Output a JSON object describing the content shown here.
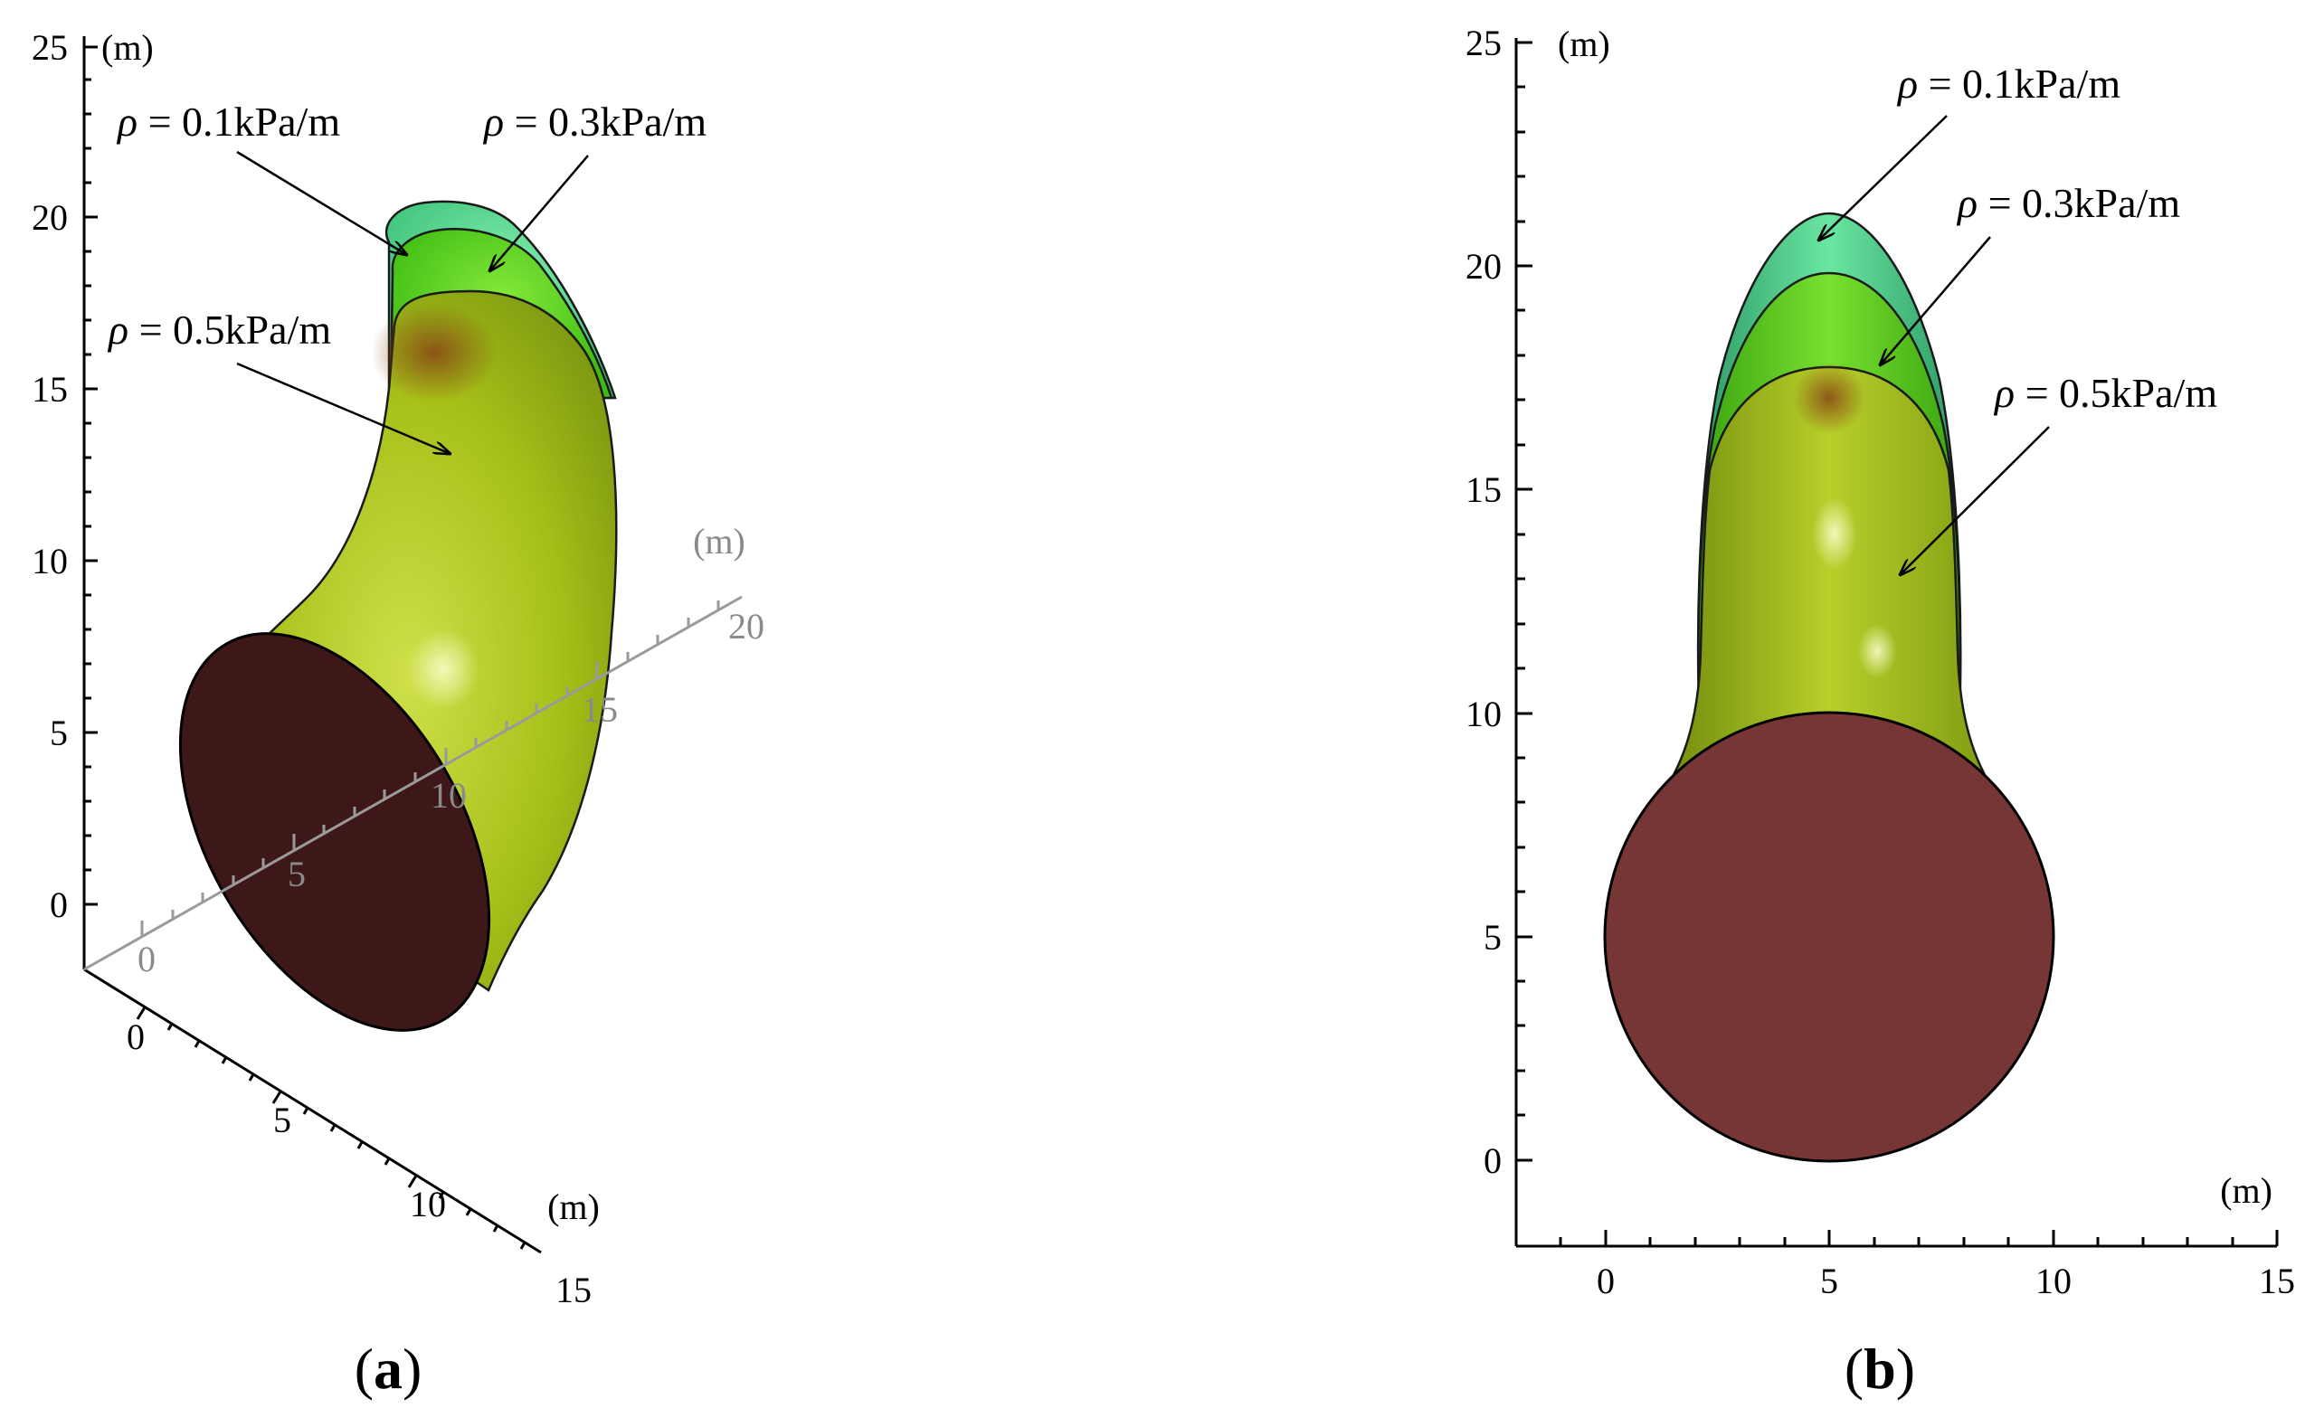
{
  "colors": {
    "outer_layer": "#56d98e",
    "middle_layer": "#5fcc1a",
    "inner_layer": "#a9c21a",
    "cross_section_a": "#3e1818",
    "cross_section_b": "#773636",
    "gray_axis": "#9a9a9a"
  },
  "panel_a": {
    "label_open": "(",
    "label_letter": "a",
    "label_close": ")",
    "vertical_axis": {
      "unit": "(m)",
      "ticks": [
        "0",
        "5",
        "10",
        "15",
        "20",
        "25"
      ]
    },
    "front_axis": {
      "unit": "(m)",
      "ticks": [
        "0",
        "5",
        "10",
        "15"
      ]
    },
    "depth_axis": {
      "unit": "(m)",
      "ticks": [
        "0",
        "5",
        "10",
        "15",
        "20"
      ]
    },
    "annotations": [
      {
        "symbol": "ρ",
        "text": " = 0.1kPa/m"
      },
      {
        "symbol": "ρ",
        "text": " = 0.3kPa/m"
      },
      {
        "symbol": "ρ",
        "text": " = 0.5kPa/m"
      }
    ]
  },
  "panel_b": {
    "label_open": "(",
    "label_letter": "b",
    "label_close": ")",
    "y_axis": {
      "unit": "(m)",
      "ticks": [
        "0",
        "5",
        "10",
        "15",
        "20",
        "25"
      ]
    },
    "x_axis": {
      "unit": "(m)",
      "ticks": [
        "0",
        "5",
        "10",
        "15"
      ]
    },
    "annotations": [
      {
        "symbol": "ρ",
        "text": " = 0.1kPa/m"
      },
      {
        "symbol": "ρ",
        "text": " = 0.3kPa/m"
      },
      {
        "symbol": "ρ",
        "text": " = 0.5kPa/m"
      }
    ]
  }
}
